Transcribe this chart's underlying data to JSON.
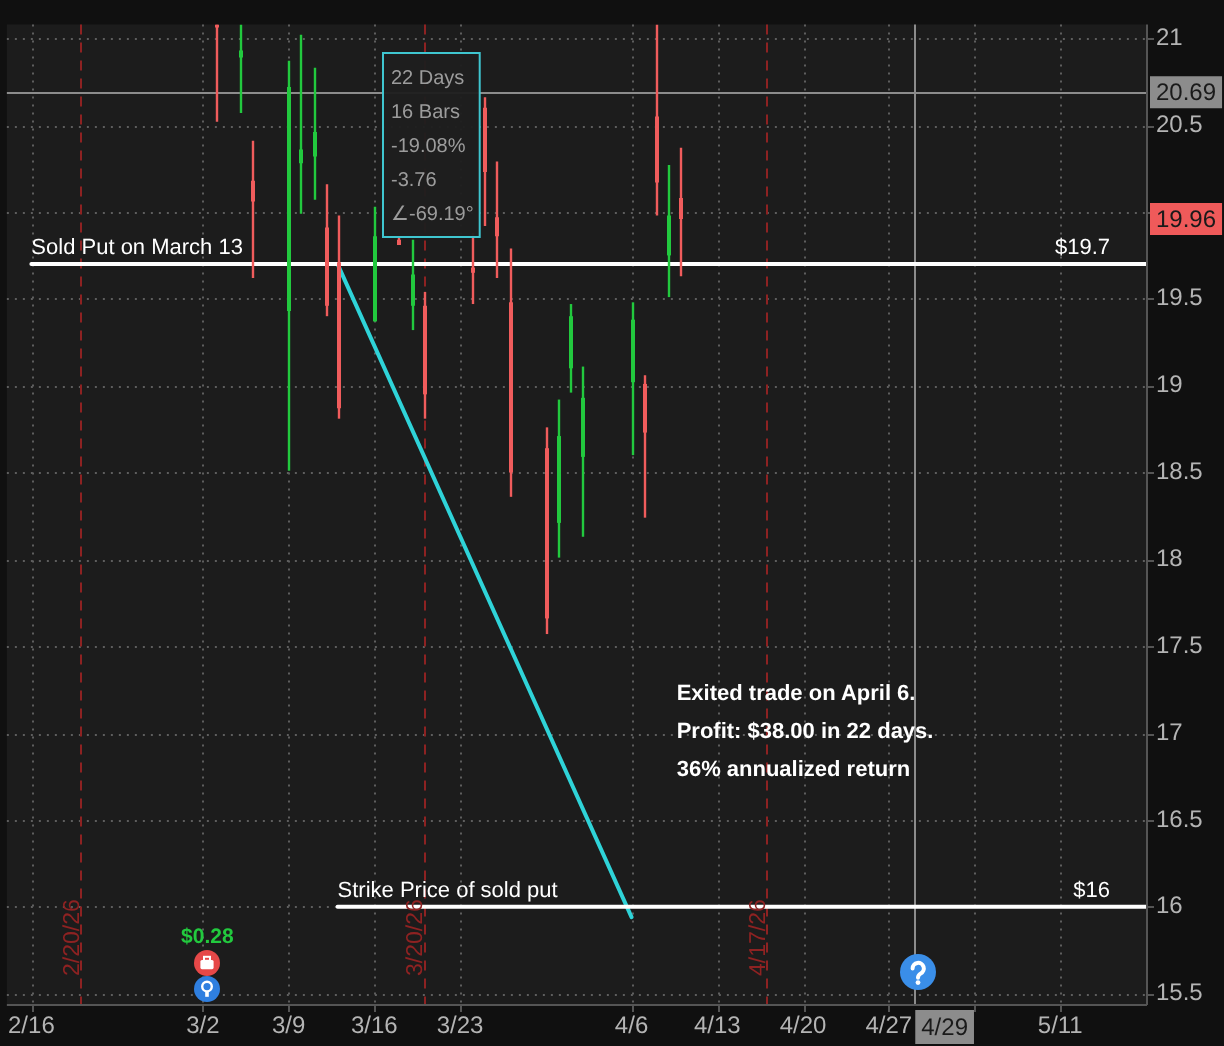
{
  "chart_data": {
    "type": "candlestick",
    "x": [
      "--03-03",
      "--03-05",
      "--03-06",
      "--03-09",
      "--03-10",
      "--03-11",
      "--03-12",
      "--03-13",
      "--03-16",
      "--03-18",
      "--03-19",
      "--03-20",
      "--03-24",
      "--03-25",
      "--03-26",
      "--03-27",
      "--03-30",
      "--03-31",
      "--04-01",
      "--04-02",
      "--04-06",
      "--04-07",
      "--04-08",
      "--04-09",
      "--04-10"
    ],
    "ohlc": [
      [
        21.08,
        21.08,
        20.52,
        21.08
      ],
      [
        20.89,
        21.08,
        20.57,
        20.93
      ],
      [
        20.18,
        20.41,
        19.62,
        20.06
      ],
      [
        19.43,
        20.87,
        18.51,
        20.72
      ],
      [
        20.28,
        21.02,
        19.99,
        20.36
      ],
      [
        20.32,
        20.83,
        20.07,
        20.46
      ],
      [
        19.91,
        20.16,
        19.4,
        19.46
      ],
      [
        19.71,
        19.98,
        18.81,
        18.87
      ],
      [
        19.37,
        20.03,
        19.37,
        19.86
      ],
      [
        19.84,
        19.85,
        19.81,
        19.81
      ],
      [
        19.46,
        19.84,
        19.32,
        19.64
      ],
      [
        19.46,
        19.54,
        18.81,
        18.95
      ],
      [
        19.68,
        19.88,
        19.47,
        19.65
      ],
      [
        20.6,
        20.66,
        19.92,
        20.23
      ],
      [
        19.97,
        20.29,
        19.62,
        19.86
      ],
      [
        19.48,
        19.79,
        18.36,
        18.5
      ],
      [
        18.64,
        18.76,
        17.57,
        17.66
      ],
      [
        18.21,
        18.92,
        18.01,
        18.71
      ],
      [
        19.1,
        19.47,
        18.96,
        19.4
      ],
      [
        18.59,
        19.11,
        18.13,
        18.93
      ],
      [
        19.02,
        19.48,
        18.6,
        19.38
      ],
      [
        19.01,
        19.06,
        18.24,
        18.73
      ],
      [
        20.55,
        21.08,
        19.98,
        20.17
      ],
      [
        19.75,
        20.27,
        19.51,
        19.98
      ],
      [
        20.08,
        20.37,
        19.63,
        19.96
      ]
    ],
    "colors": [
      "#f05c5c",
      "#22c93e",
      "#f05c5c",
      "#22c93e",
      "#22c93e",
      "#22c93e",
      "#f05c5c",
      "#f05c5c",
      "#22c93e",
      "#f05c5c",
      "#22c93e",
      "#f05c5c",
      "#f05c5c",
      "#f05c5c",
      "#f05c5c",
      "#f05c5c",
      "#f05c5c",
      "#22c93e",
      "#22c93e",
      "#22c93e",
      "#22c93e",
      "#f05c5c",
      "#f05c5c",
      "#22c93e",
      "#f05c5c"
    ],
    "series": [
      {
        "type": "line",
        "name": "Sold Put on March 13",
        "color": "#ffffff",
        "x": [
          "--02-16",
          "--05-18"
        ],
        "values": [
          19.7,
          19.7
        ],
        "value_labels": [
          null,
          "$19.7"
        ]
      },
      {
        "type": "line",
        "name": "Strike Price of sold put",
        "color": "#ffffff",
        "x": [
          "--03-13",
          "--05-18"
        ],
        "values": [
          16,
          16
        ],
        "value_labels": [
          null,
          "$16"
        ]
      },
      {
        "type": "line",
        "color": "#2fd3d8",
        "x": [
          "--03-13",
          "--04-06"
        ],
        "values": [
          19.7,
          15.94
        ]
      }
    ],
    "xlim": [
      "--02-14",
      "--05-18"
    ],
    "xticks": [
      {
        "value": "--02-16",
        "label": "2/16"
      },
      {
        "value": "--03-02",
        "label": "3/2"
      },
      {
        "value": "--03-09",
        "label": "3/9"
      },
      {
        "value": "--03-16",
        "label": "3/16"
      },
      {
        "value": "--03-23",
        "label": "3/23"
      },
      {
        "value": "--04-06",
        "label": "4/6"
      },
      {
        "value": "--04-13",
        "label": "4/13"
      },
      {
        "value": "--04-20",
        "label": "4/20"
      },
      {
        "value": "--04-27",
        "label": "4/27"
      },
      {
        "value": "--05-04",
        "label": null
      },
      {
        "value": "--05-11",
        "label": "5/11"
      }
    ],
    "ylim": [
      15.44,
      21.08
    ],
    "yticks": [
      15.5,
      16,
      16.5,
      17,
      17.5,
      18,
      18.5,
      19,
      19.5,
      {
        "value": 20,
        "label": null
      },
      20.5,
      21
    ],
    "grid": true,
    "ref_lines": [
      {
        "axis": "y",
        "value": 20.69,
        "label": "20.69",
        "color": "#8c8c8c"
      },
      {
        "axis": "x",
        "value": "--04-29",
        "label": "4/29",
        "color": "#8c8c8c"
      },
      {
        "axis": "x",
        "value": "--02-20",
        "label": "2/20/26",
        "color": "#8e2222",
        "line_style": "dashed"
      },
      {
        "axis": "x",
        "value": "--03-20",
        "label": "3/20/26",
        "color": "#8e2222",
        "line_style": "dashed"
      },
      {
        "axis": "x",
        "value": "--04-17",
        "label": "4/17/26",
        "color": "#8e2222",
        "line_style": "dashed"
      }
    ],
    "annotations": [
      "22 Days\n16 Bars\n-19.08%\n-3.76\n∠-69.19°",
      "Exited trade on April 6.\nProfit: $38.00 in 22 days.\n36% annualized return",
      "$0.28",
      {
        "text": "19.96",
        "y": 19.96
      }
    ]
  }
}
